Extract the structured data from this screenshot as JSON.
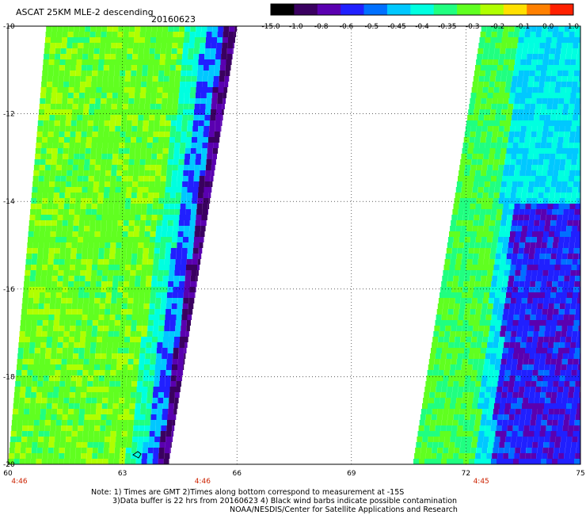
{
  "header": {
    "title": "ASCAT 25KM MLE-2 descending",
    "date": "20160623"
  },
  "colorbar": {
    "labels": [
      "-15.0",
      "-1.0",
      "-0.8",
      "-0.6",
      "-0.5",
      "-0.45",
      "-0.4",
      "-0.35",
      "-0.3",
      "-0.2",
      "-0.1",
      "0.0",
      "1.0"
    ],
    "colors": [
      "#000000",
      "#3a0060",
      "#5a00b0",
      "#2020ff",
      "#0070ff",
      "#00c8ff",
      "#00ffe0",
      "#20ff80",
      "#60ff20",
      "#b0ff00",
      "#ffe000",
      "#ff8000",
      "#ff2000"
    ]
  },
  "axes": {
    "lat_labels": [
      "-10",
      "-12",
      "-14",
      "-16",
      "-18",
      "-20"
    ],
    "lon_labels": [
      "60",
      "63",
      "66",
      "69",
      "72",
      "75"
    ],
    "lat_range": [
      -20,
      -10
    ],
    "lon_range": [
      60,
      75
    ]
  },
  "time_labels": [
    {
      "text": "4:46",
      "lon": 60.3
    },
    {
      "text": "4:46",
      "lon": 65.1
    },
    {
      "text": "4:45",
      "lon": 72.4
    }
  ],
  "footer": {
    "line1": "Note: 1) Times are GMT 2)Times along bottom correspond to measurement at -15S",
    "line2": "3)Data buffer is 22 hrs from 20160623 4) Black wind barbs indicate possible contamination",
    "line3": "NOAA/NESDIS/Center for Satellite Applications and Research"
  },
  "swaths": [
    {
      "name": "west-swath",
      "lon_left_top": 61.0,
      "lon_right_top": 66.0,
      "lon_right_bottom": 64.2,
      "lon_left_bottom": 60.0
    },
    {
      "name": "east-swath",
      "lon_left_top": 72.4,
      "lon_right_top": 75.0,
      "lon_right_bottom": 75.0,
      "lon_left_bottom": 70.6
    }
  ]
}
